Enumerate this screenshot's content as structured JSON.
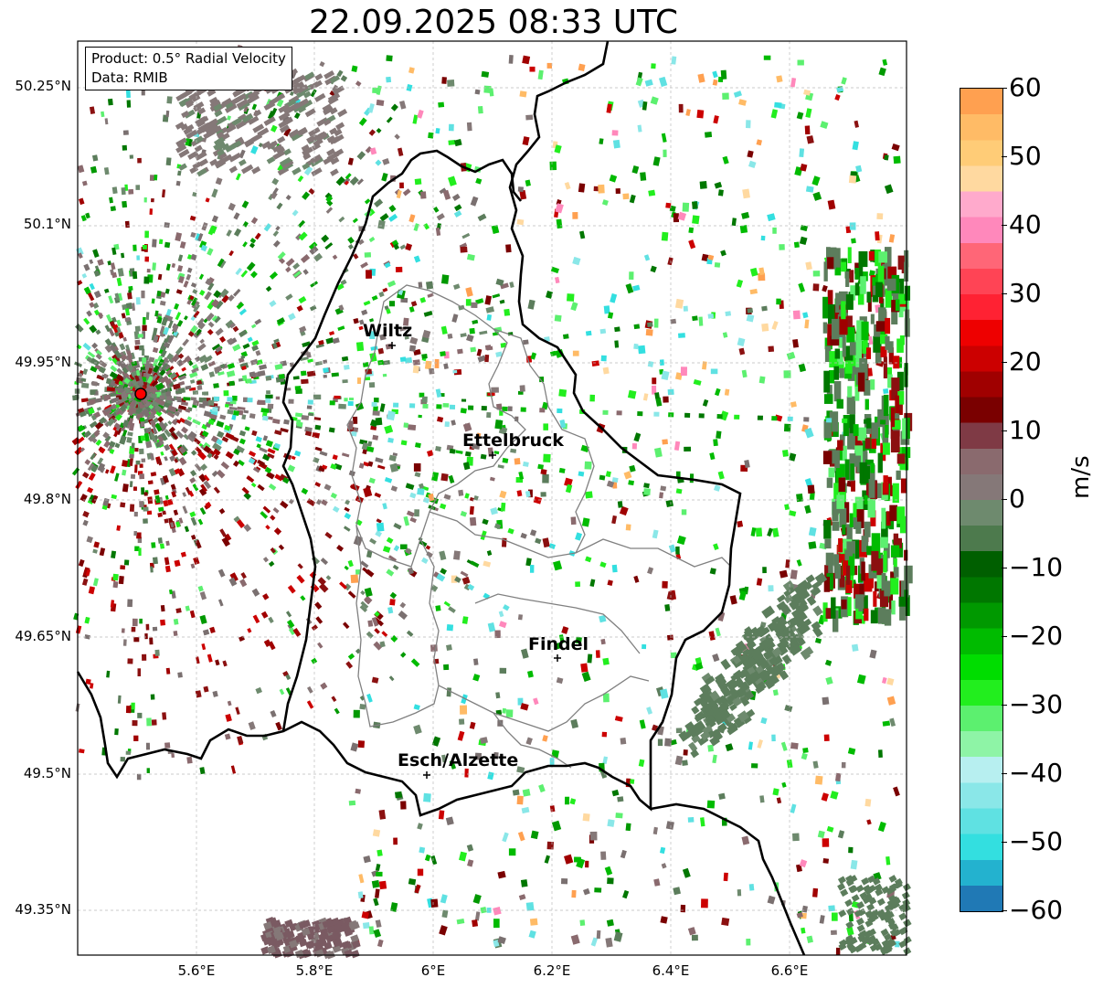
{
  "title": "22.09.2025 08:33 UTC",
  "info_box": {
    "product_line": "Product: 0.5° Radial Velocity",
    "data_line": "Data: RMIB"
  },
  "latitude_labels": [
    "50.25°N",
    "50.1°N",
    "49.95°N",
    "49.8°N",
    "49.65°N",
    "49.5°N",
    "49.35°N"
  ],
  "longitude_labels": [
    "5.6°E",
    "5.8°E",
    "6°E",
    "6.2°E",
    "6.4°E",
    "6.6°E"
  ],
  "cities": [
    {
      "name": "Wiltz"
    },
    {
      "name": "Ettelbruck"
    },
    {
      "name": "Findel"
    },
    {
      "name": "Esch/Alzette"
    }
  ],
  "colorbar": {
    "label": "m/s",
    "ticks": [
      "60",
      "50",
      "40",
      "30",
      "20",
      "10",
      "0",
      "−10",
      "−20",
      "−30",
      "−40",
      "−50",
      "−60"
    ],
    "min": -60,
    "max": 60,
    "colors": [
      "#2079b5",
      "#23b2cf",
      "#33dfe0",
      "#5fe1e2",
      "#8ae7e8",
      "#b7eff0",
      "#8ef4a6",
      "#5cf06f",
      "#22ee1e",
      "#00dd00",
      "#00bb00",
      "#009900",
      "#007700",
      "#005f00",
      "#4d7a4d",
      "#6e8a6e",
      "#857878",
      "#8a6a6e",
      "#7f3a45",
      "#7a0000",
      "#a00000",
      "#cc0000",
      "#ee0000",
      "#ff2233",
      "#ff4455",
      "#ff6677",
      "#ff88bb",
      "#ffaacc",
      "#ffd9a0",
      "#ffcc77",
      "#ffbb66",
      "#ffa050"
    ]
  },
  "radar_site": {
    "marker_color": "#ff0000"
  },
  "colors": {
    "border": "#000000",
    "canton_lines": "#808080",
    "grid": "#bbbbbb"
  }
}
